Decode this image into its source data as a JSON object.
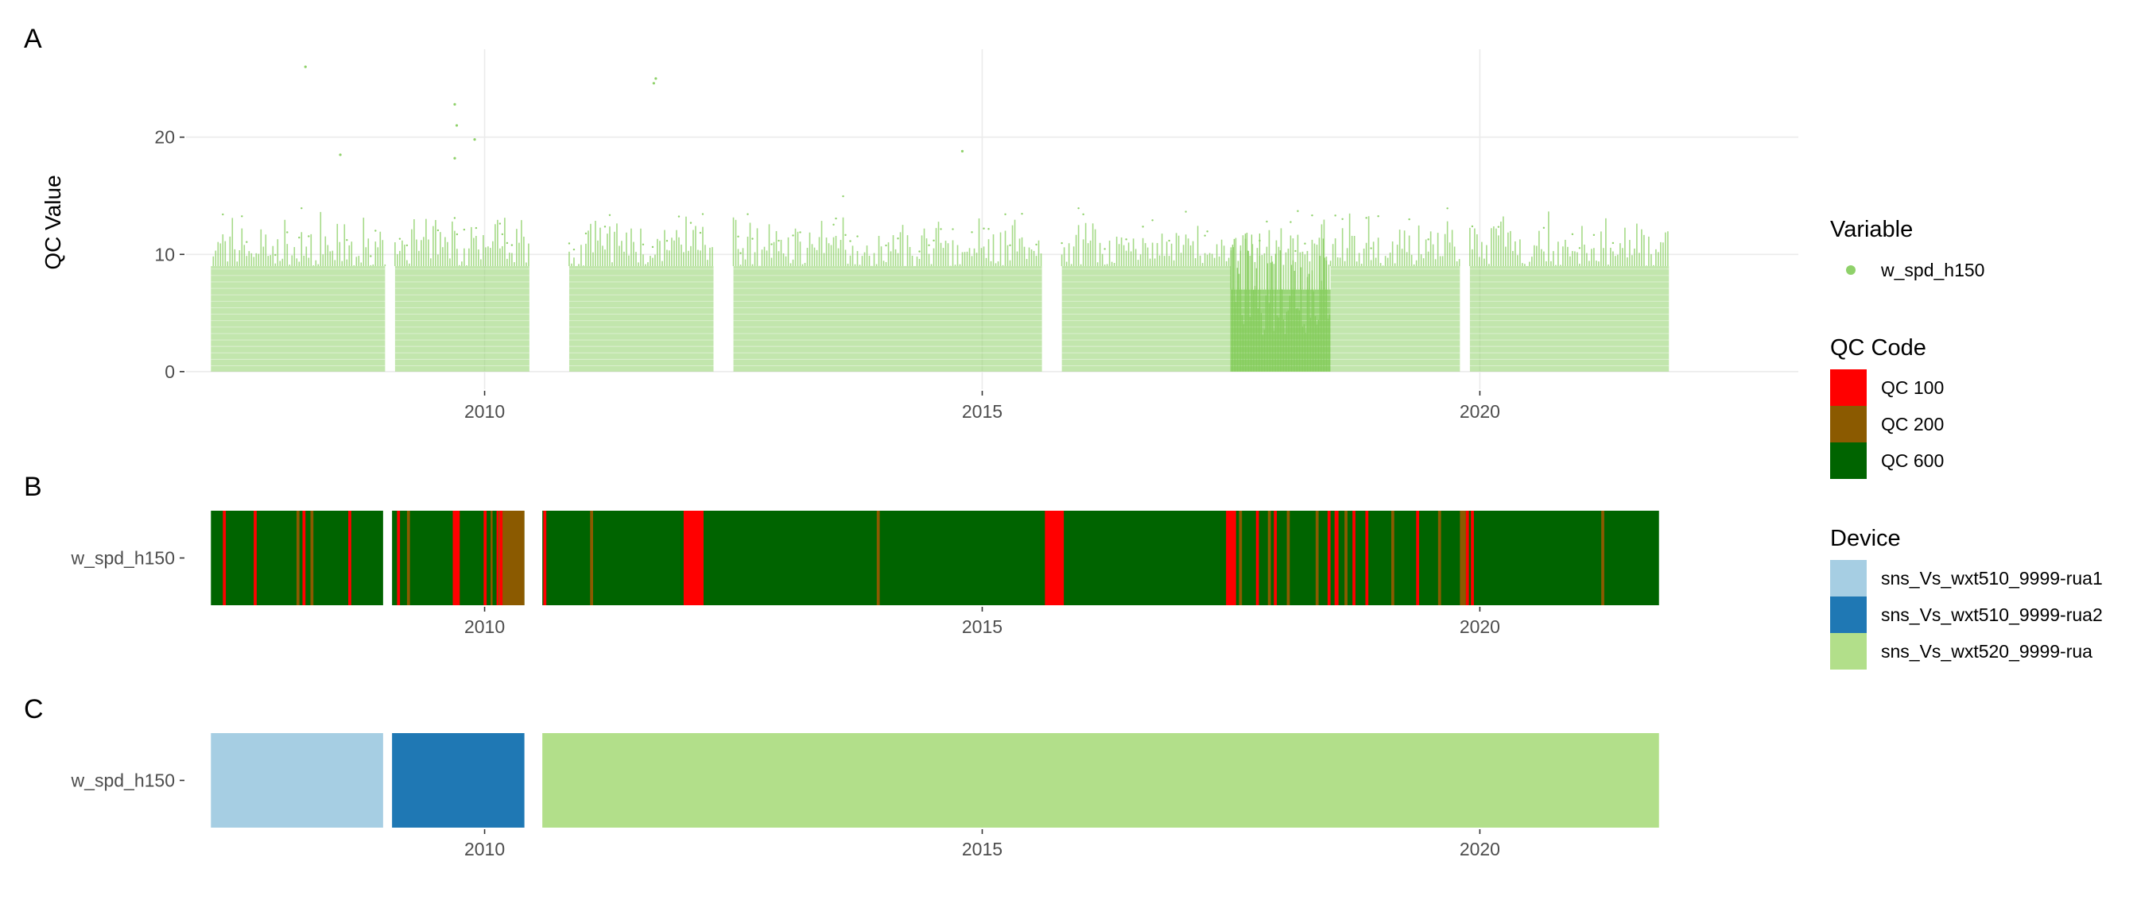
{
  "chart_data": [
    {
      "panel": "A",
      "type": "scatter",
      "ylabel": "QC Value",
      "xlim": [
        2007.0,
        2023.2
      ],
      "ylim": [
        -1.5,
        27.5
      ],
      "x_ticks": [
        2010,
        2015,
        2020
      ],
      "x_tick_labels": [
        "2010",
        "2015",
        "2020"
      ],
      "y_ticks": [
        0,
        10,
        20
      ],
      "y_tick_labels": [
        "0",
        "10",
        "20"
      ],
      "grid": true,
      "series": [
        {
          "name": "w_spd_h150",
          "color": "#8fd16a",
          "data_coverage": [
            [
              2007.25,
              2009.0
            ],
            [
              2009.1,
              2010.45
            ],
            [
              2010.85,
              2012.3
            ],
            [
              2012.5,
              2015.6
            ],
            [
              2015.8,
              2017.5
            ],
            [
              2017.5,
              2018.5
            ],
            [
              2018.5,
              2019.8
            ],
            [
              2019.9,
              2021.9
            ]
          ],
          "typical_max": 13,
          "sparse_outliers": [
            [
              2008.2,
              26.0
            ],
            [
              2009.7,
              22.8
            ],
            [
              2009.72,
              21.0
            ],
            [
              2009.9,
              19.8
            ],
            [
              2011.7,
              24.6
            ],
            [
              2011.72,
              25.0
            ],
            [
              2008.55,
              18.5
            ],
            [
              2014.8,
              18.8
            ],
            [
              2009.7,
              18.2
            ]
          ]
        }
      ]
    },
    {
      "panel": "B",
      "type": "heatmap",
      "y_categories": [
        "w_spd_h150"
      ],
      "xlim": [
        2007.0,
        2023.2
      ],
      "x_ticks": [
        2010,
        2015,
        2020
      ],
      "x_tick_labels": [
        "2010",
        "2015",
        "2020"
      ],
      "base_segments": [
        {
          "start": 2007.25,
          "end": 2008.98,
          "qc": "QC 600"
        },
        {
          "start": 2009.07,
          "end": 2010.4,
          "qc": "QC 600"
        },
        {
          "start": 2010.58,
          "end": 2021.8,
          "qc": "QC 600"
        }
      ],
      "events": [
        {
          "start": 2007.37,
          "end": 2007.4,
          "qc": "QC 100"
        },
        {
          "start": 2007.68,
          "end": 2007.71,
          "qc": "QC 100"
        },
        {
          "start": 2008.11,
          "end": 2008.14,
          "qc": "QC 200"
        },
        {
          "start": 2008.17,
          "end": 2008.2,
          "qc": "QC 100"
        },
        {
          "start": 2008.25,
          "end": 2008.28,
          "qc": "QC 200"
        },
        {
          "start": 2008.63,
          "end": 2008.66,
          "qc": "QC 100"
        },
        {
          "start": 2009.12,
          "end": 2009.15,
          "qc": "QC 100"
        },
        {
          "start": 2009.22,
          "end": 2009.25,
          "qc": "QC 200"
        },
        {
          "start": 2009.68,
          "end": 2009.75,
          "qc": "QC 100"
        },
        {
          "start": 2009.99,
          "end": 2010.02,
          "qc": "QC 100"
        },
        {
          "start": 2010.06,
          "end": 2010.08,
          "qc": "QC 200"
        },
        {
          "start": 2010.12,
          "end": 2010.14,
          "qc": "QC 100"
        },
        {
          "start": 2010.14,
          "end": 2010.4,
          "qc": "QC 200"
        },
        {
          "start": 2010.15,
          "end": 2010.18,
          "qc": "QC 100"
        },
        {
          "start": 2010.59,
          "end": 2010.62,
          "qc": "QC 100"
        },
        {
          "start": 2011.06,
          "end": 2011.09,
          "qc": "QC 200"
        },
        {
          "start": 2012.0,
          "end": 2012.2,
          "qc": "QC 100"
        },
        {
          "start": 2013.94,
          "end": 2013.97,
          "qc": "QC 200"
        },
        {
          "start": 2015.63,
          "end": 2015.82,
          "qc": "QC 100"
        },
        {
          "start": 2017.45,
          "end": 2017.55,
          "qc": "QC 100"
        },
        {
          "start": 2017.58,
          "end": 2017.61,
          "qc": "QC 200"
        },
        {
          "start": 2017.75,
          "end": 2017.78,
          "qc": "QC 100"
        },
        {
          "start": 2017.87,
          "end": 2017.9,
          "qc": "QC 200"
        },
        {
          "start": 2017.93,
          "end": 2017.96,
          "qc": "QC 100"
        },
        {
          "start": 2018.06,
          "end": 2018.09,
          "qc": "QC 200"
        },
        {
          "start": 2018.35,
          "end": 2018.38,
          "qc": "QC 200"
        },
        {
          "start": 2018.47,
          "end": 2018.5,
          "qc": "QC 100"
        },
        {
          "start": 2018.54,
          "end": 2018.58,
          "qc": "QC 100"
        },
        {
          "start": 2018.64,
          "end": 2018.67,
          "qc": "QC 200"
        },
        {
          "start": 2018.72,
          "end": 2018.75,
          "qc": "QC 100"
        },
        {
          "start": 2018.85,
          "end": 2018.88,
          "qc": "QC 100"
        },
        {
          "start": 2019.11,
          "end": 2019.14,
          "qc": "QC 200"
        },
        {
          "start": 2019.36,
          "end": 2019.39,
          "qc": "QC 100"
        },
        {
          "start": 2019.58,
          "end": 2019.61,
          "qc": "QC 200"
        },
        {
          "start": 2019.8,
          "end": 2019.86,
          "qc": "QC 200"
        },
        {
          "start": 2019.86,
          "end": 2019.89,
          "qc": "QC 100"
        },
        {
          "start": 2019.91,
          "end": 2019.94,
          "qc": "QC 100"
        },
        {
          "start": 2021.22,
          "end": 2021.25,
          "qc": "QC 200"
        }
      ]
    },
    {
      "panel": "C",
      "type": "heatmap",
      "y_categories": [
        "w_spd_h150"
      ],
      "xlim": [
        2007.0,
        2023.2
      ],
      "x_ticks": [
        2010,
        2015,
        2020
      ],
      "x_tick_labels": [
        "2010",
        "2015",
        "2020"
      ],
      "segments": [
        {
          "start": 2007.25,
          "end": 2008.98,
          "device": "sns_Vs_wxt510_9999-rua1"
        },
        {
          "start": 2009.07,
          "end": 2010.4,
          "device": "sns_Vs_wxt510_9999-rua2"
        },
        {
          "start": 2010.58,
          "end": 2021.8,
          "device": "sns_Vs_wxt520_9999-rua"
        }
      ]
    }
  ],
  "panel_tags": [
    "A",
    "B",
    "C"
  ],
  "legends": {
    "variable": {
      "title": "Variable",
      "items": [
        {
          "label": "w_spd_h150",
          "color": "#8fd16a"
        }
      ]
    },
    "qc_code": {
      "title": "QC Code",
      "items": [
        {
          "label": "QC 100",
          "color": "#ff0000"
        },
        {
          "label": "QC 200",
          "color": "#8b5a00"
        },
        {
          "label": "QC 600",
          "color": "#006400"
        }
      ]
    },
    "device": {
      "title": "Device",
      "items": [
        {
          "label": "sns_Vs_wxt510_9999-rua1",
          "color": "#a6cee3"
        },
        {
          "label": "sns_Vs_wxt510_9999-rua2",
          "color": "#1f78b4"
        },
        {
          "label": "sns_Vs_wxt520_9999-rua",
          "color": "#b2df8a"
        }
      ]
    }
  }
}
